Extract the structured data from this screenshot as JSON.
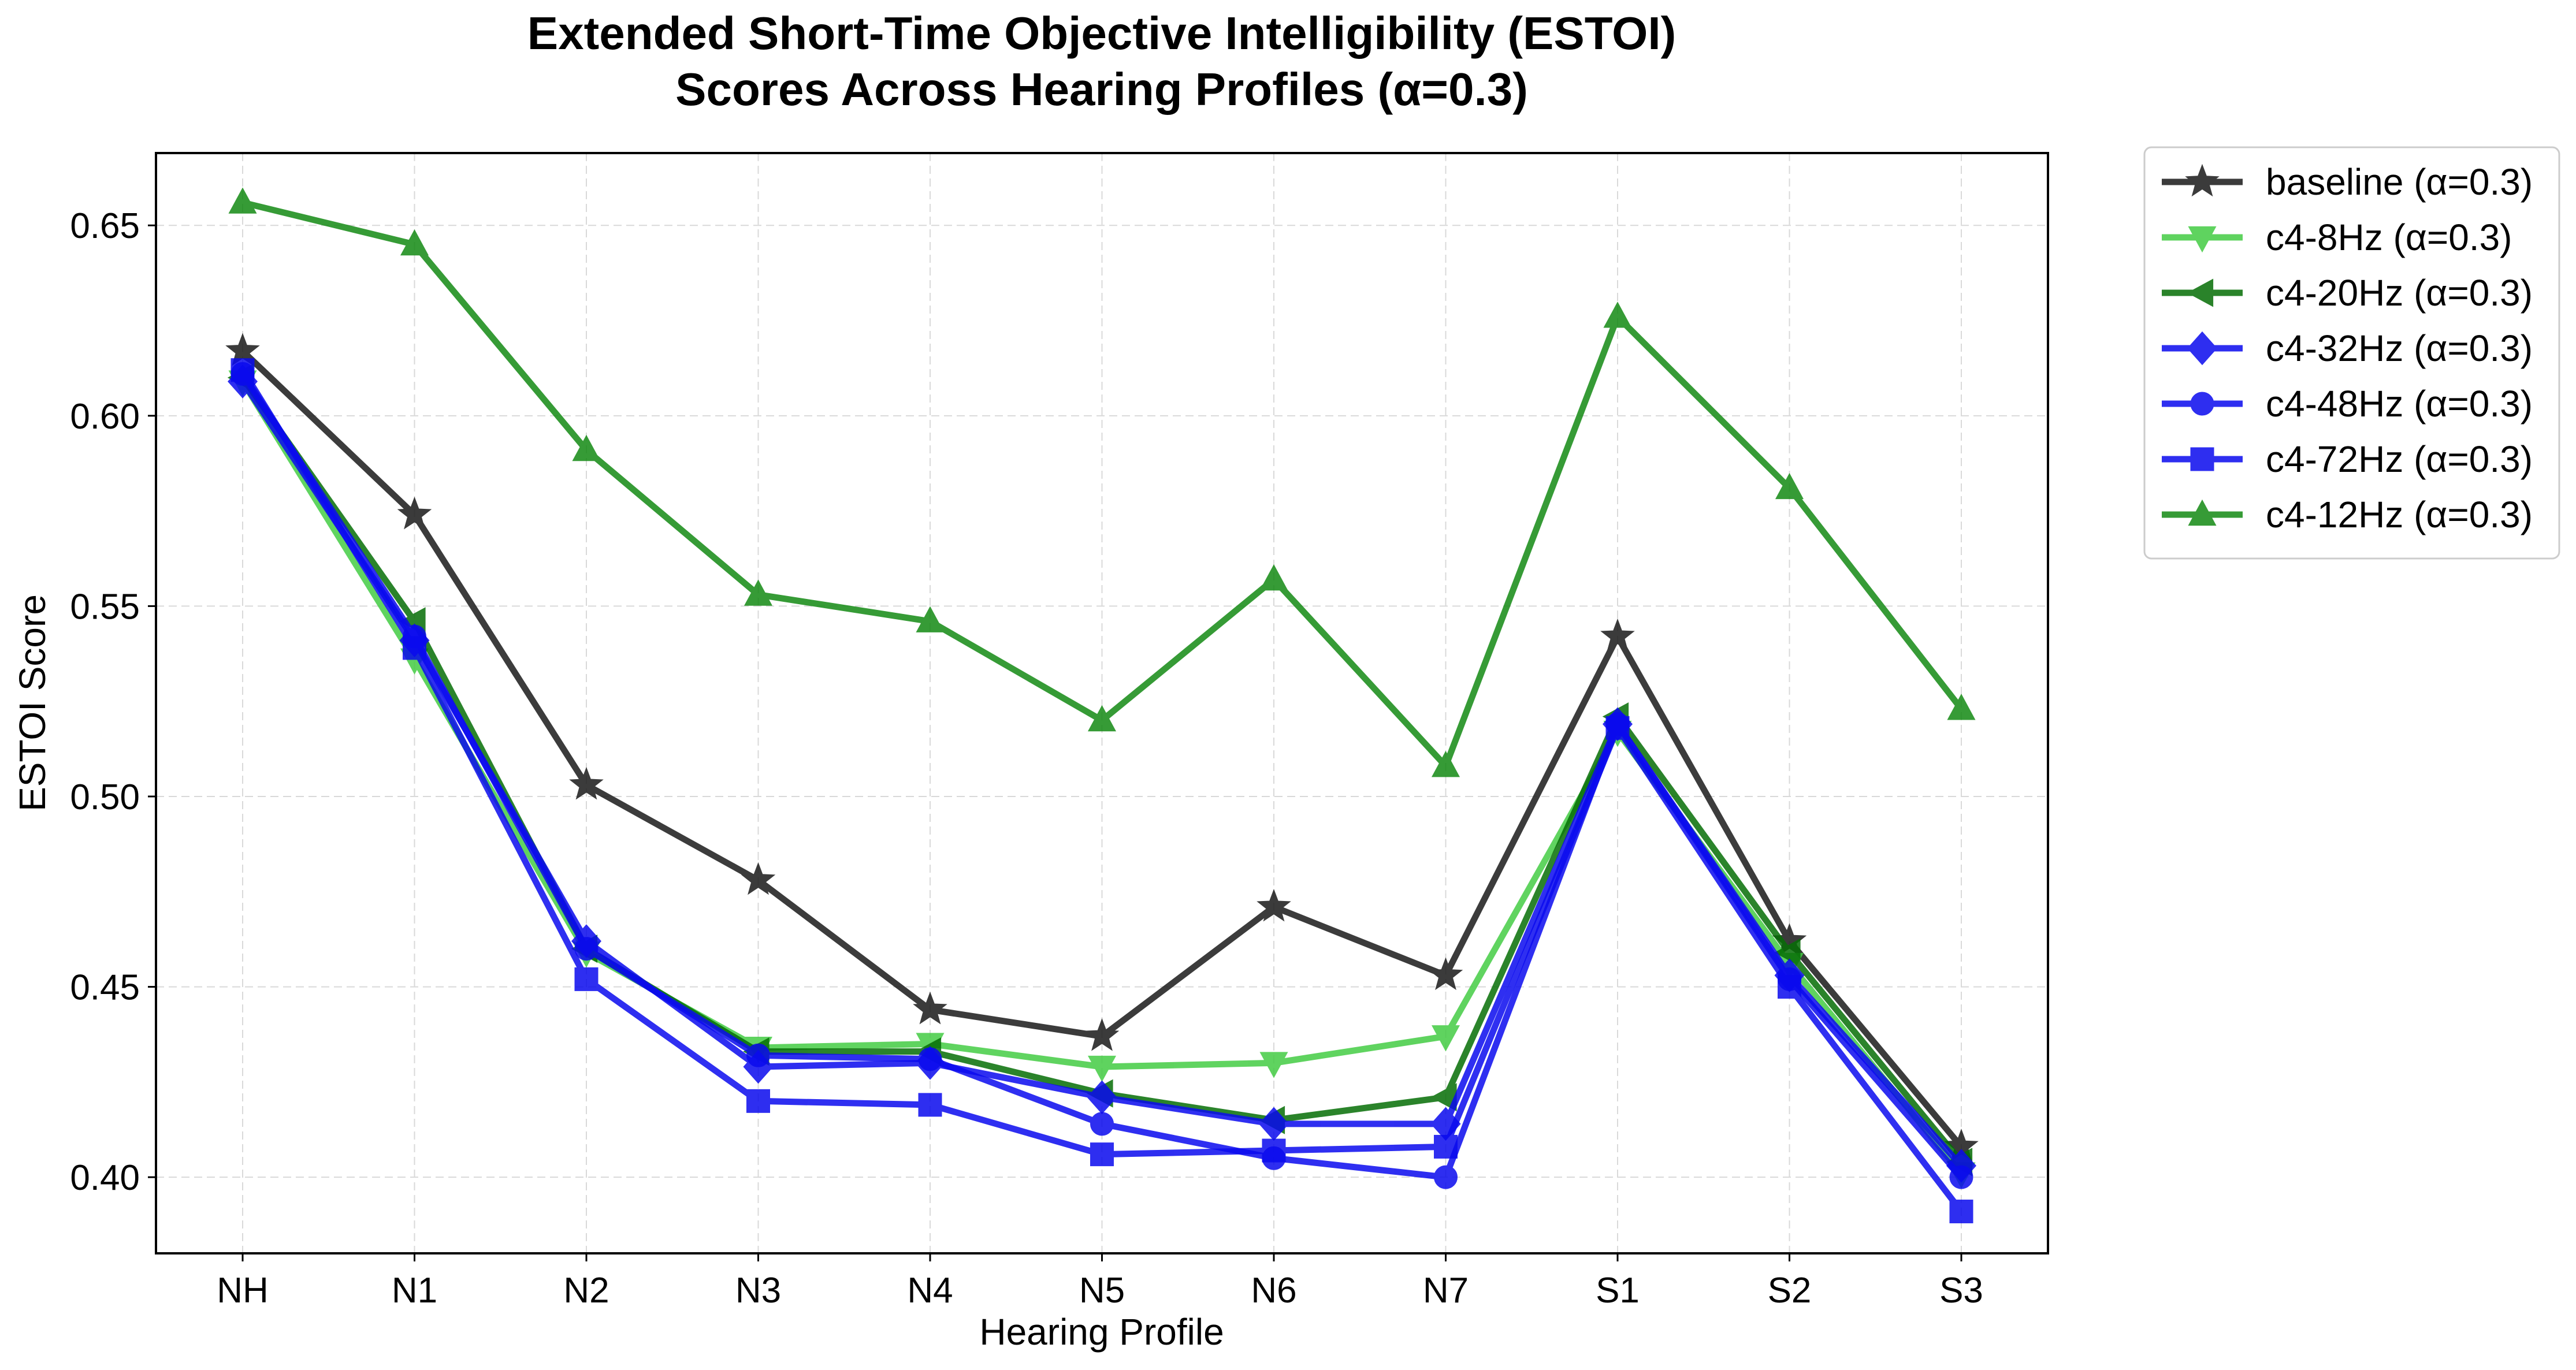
{
  "chart_data": {
    "type": "line",
    "title_lines": [
      "Extended Short-Time Objective Intelligibility (ESTOI)",
      "Scores Across Hearing Profiles (α=0.3)"
    ],
    "xlabel": "Hearing Profile",
    "ylabel": "ESTOI Score",
    "categories": [
      "NH",
      "N1",
      "N2",
      "N3",
      "N4",
      "N5",
      "N6",
      "N7",
      "S1",
      "S2",
      "S3"
    ],
    "ylim": [
      0.38,
      0.669
    ],
    "yticks": [
      0.4,
      0.45,
      0.5,
      0.55,
      0.6,
      0.65
    ],
    "ytick_labels": [
      "0.40",
      "0.45",
      "0.50",
      "0.55",
      "0.60",
      "0.65"
    ],
    "grid": true,
    "legend_position": "outside-right-top",
    "series": [
      {
        "name": "baseline (α=0.3)",
        "color": "#1a1a1a",
        "marker": "star",
        "values": [
          0.617,
          0.574,
          0.503,
          0.478,
          0.444,
          0.437,
          0.471,
          0.453,
          0.542,
          0.462,
          0.408
        ]
      },
      {
        "name": "c4-8Hz (α=0.3)",
        "color": "#44cc44",
        "marker": "triangle-down",
        "values": [
          0.609,
          0.536,
          0.459,
          0.434,
          0.435,
          0.429,
          0.43,
          0.437,
          0.517,
          0.456,
          0.401
        ]
      },
      {
        "name": "c4-20Hz (α=0.3)",
        "color": "#066e06",
        "marker": "triangle-left",
        "values": [
          0.61,
          0.546,
          0.46,
          0.433,
          0.433,
          0.422,
          0.415,
          0.421,
          0.521,
          0.459,
          0.404
        ]
      },
      {
        "name": "c4-32Hz (α=0.3)",
        "color": "#0a0aee",
        "marker": "diamond",
        "values": [
          0.609,
          0.541,
          0.462,
          0.429,
          0.43,
          0.421,
          0.414,
          0.414,
          0.519,
          0.453,
          0.403
        ]
      },
      {
        "name": "c4-48Hz (α=0.3)",
        "color": "#0a0aee",
        "marker": "circle",
        "values": [
          0.611,
          0.542,
          0.46,
          0.432,
          0.431,
          0.414,
          0.405,
          0.4,
          0.519,
          0.452,
          0.4
        ]
      },
      {
        "name": "c4-72Hz (α=0.3)",
        "color": "#0a0aee",
        "marker": "square",
        "values": [
          0.612,
          0.539,
          0.452,
          0.42,
          0.419,
          0.406,
          0.407,
          0.408,
          0.518,
          0.45,
          0.391
        ]
      },
      {
        "name": "c4-12Hz (α=0.3)",
        "color": "#138a13",
        "marker": "triangle-up",
        "values": [
          0.656,
          0.645,
          0.591,
          0.553,
          0.546,
          0.52,
          0.557,
          0.508,
          0.626,
          0.581,
          0.523
        ]
      }
    ]
  }
}
